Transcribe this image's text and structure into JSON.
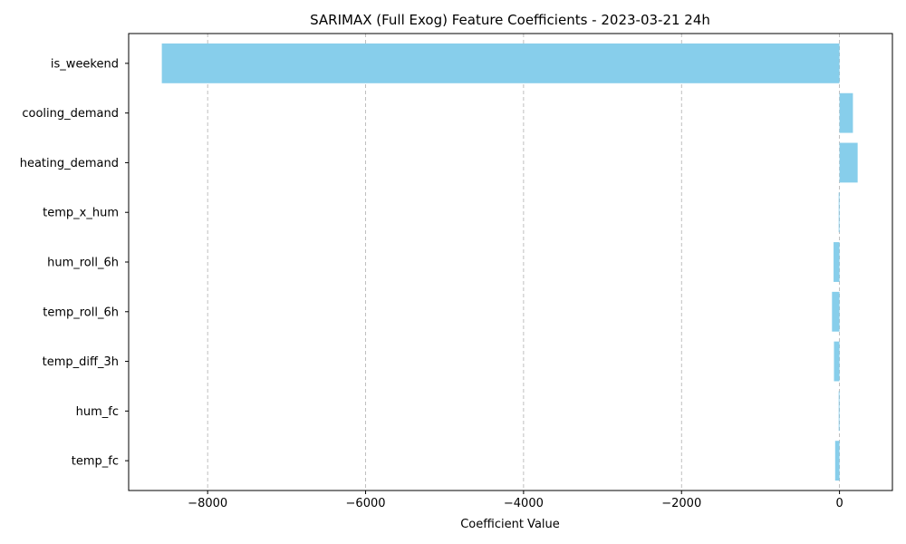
{
  "chart_data": {
    "type": "bar",
    "orientation": "horizontal",
    "title": "SARIMAX (Full Exog) Feature Coefficients - 2023-03-21 24h",
    "xlabel": "Coefficient Value",
    "ylabel": "",
    "categories": [
      "is_weekend",
      "cooling_demand",
      "heating_demand",
      "temp_x_hum",
      "hum_roll_6h",
      "temp_roll_6h",
      "temp_diff_3h",
      "hum_fc",
      "temp_fc"
    ],
    "values": [
      -8580,
      170,
      230,
      -10,
      -75,
      -95,
      -70,
      -10,
      -55
    ],
    "xlim": [
      -9000,
      670
    ],
    "xticks": [
      -8000,
      -6000,
      -4000,
      -2000,
      0
    ],
    "xtick_labels": [
      "−8000",
      "−6000",
      "−4000",
      "−2000",
      "0"
    ],
    "grid": "x-axis dashed",
    "bar_color": "#87CEEB",
    "grid_color": "#b0b0b0"
  }
}
